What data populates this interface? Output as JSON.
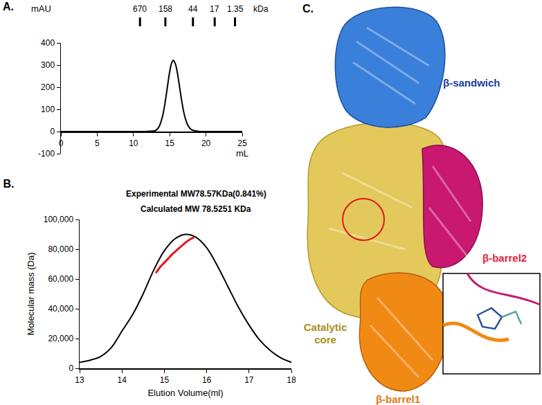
{
  "chart_data": [
    {
      "type": "line",
      "title": "A.",
      "x_label": "mL",
      "y_label": "mAU",
      "xlim": [
        0,
        25
      ],
      "xticks": [
        0,
        5,
        10,
        15,
        20,
        25
      ],
      "ylim": [
        -100,
        400
      ],
      "yticks": [
        -100,
        0,
        100,
        200,
        300,
        400
      ],
      "grid": false,
      "x": [
        0,
        5,
        10,
        12,
        13,
        13.5,
        14,
        14.25,
        14.5,
        14.75,
        15,
        15.25,
        15.5,
        15.75,
        16,
        16.25,
        16.5,
        16.75,
        17,
        17.5,
        18,
        19,
        20,
        25
      ],
      "series": [
        {
          "color": "#000000",
          "values": [
            0,
            0,
            0,
            1,
            4,
            20,
            68,
            109,
            161,
            218,
            271,
            308,
            322,
            308,
            275,
            225,
            170,
            120,
            78,
            28,
            8,
            1,
            0,
            0
          ]
        }
      ],
      "annotations": [
        {
          "x": 10.9,
          "text": "670"
        },
        {
          "x": 14.4,
          "text": "158"
        },
        {
          "x": 18.2,
          "text": "44"
        },
        {
          "x": 21.2,
          "text": "17"
        },
        {
          "x": 24.0,
          "text": "1.35"
        },
        {
          "text": "kDa"
        }
      ]
    },
    {
      "type": "line",
      "title": "B.",
      "x_label": "Elution Volume(ml)",
      "y_label": "Molecular mass (Da)",
      "xlim": [
        13,
        18
      ],
      "xticks": [
        13,
        14,
        15,
        16,
        17,
        18
      ],
      "ylim": [
        0,
        100000
      ],
      "yticks": [
        0,
        {
          "value": 20000,
          "label": "20,000"
        },
        {
          "value": 40000,
          "label": "40,000"
        },
        {
          "value": 60000,
          "label": "60,000"
        },
        {
          "value": 80000,
          "label": "80,000"
        },
        {
          "value": 100000,
          "label": "100,000"
        }
      ],
      "grid": false,
      "series": [
        {
          "color": "#000000",
          "x": [
            13,
            13.25,
            13.5,
            13.75,
            14,
            14.25,
            14.5,
            14.75,
            15,
            15.25,
            15.5,
            15.75,
            16,
            16.25,
            16.5,
            16.75,
            17,
            17.25,
            17.5,
            17.75,
            18
          ],
          "values": [
            4000,
            5500,
            8000,
            14000,
            25000,
            36000,
            50000,
            66000,
            79000,
            87000,
            90000,
            88000,
            81000,
            69000,
            55000,
            41000,
            29000,
            19000,
            12000,
            7000,
            4000
          ]
        },
        {
          "color": "#e8141e",
          "x": [
            14.8,
            14.9,
            15.0,
            15.1,
            15.2,
            15.3,
            15.4,
            15.5,
            15.6,
            15.7
          ],
          "values": [
            64000,
            68000,
            71000,
            74000,
            77000,
            79500,
            82000,
            84500,
            86500,
            88000
          ]
        }
      ],
      "annotations": [
        {
          "text": "Experimental MW78.57KDa(0.841%)"
        },
        {
          "text": "Calculated MW 78.5251 KDa"
        }
      ]
    }
  ],
  "structure_panel": {
    "label": "C.",
    "domains": [
      {
        "name": "Catalytic core",
        "color": "#e3c95c",
        "label_color": "#a88f1e"
      },
      {
        "name": "β-barrel2",
        "color": "#c8186f",
        "label_color": "#e01e3c"
      },
      {
        "name": "β-barrel1",
        "color": "#f08a14",
        "label_color": "#e07a10"
      },
      {
        "name": "β-sandwich",
        "color": "#3a7fd9",
        "label_color": "#1a3e9c"
      }
    ]
  }
}
